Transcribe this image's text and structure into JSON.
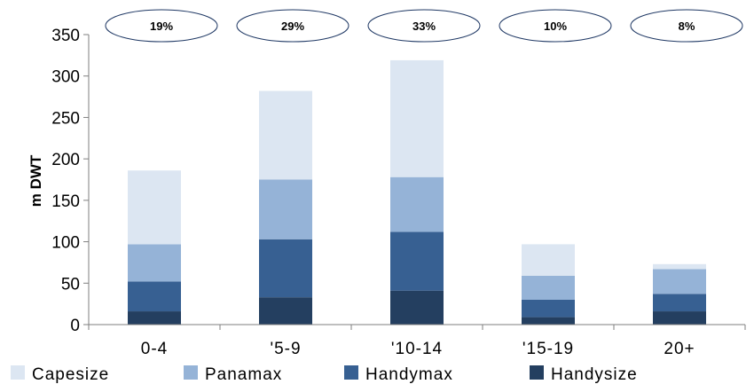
{
  "chart_data": {
    "type": "bar",
    "stacked": true,
    "categories": [
      "0-4",
      "'5-9",
      "'10-14",
      "'15-19",
      "20+"
    ],
    "series": [
      {
        "name": "Handysize",
        "values": [
          16,
          33,
          41,
          9,
          16
        ],
        "color": "#243F60"
      },
      {
        "name": "Handymax",
        "values": [
          36,
          70,
          71,
          21,
          21
        ],
        "color": "#376092"
      },
      {
        "name": "Panamax",
        "values": [
          45,
          72,
          66,
          29,
          30
        ],
        "color": "#95B3D7"
      },
      {
        "name": "Capesize",
        "values": [
          89,
          107,
          141,
          38,
          6
        ],
        "color": "#DCE6F2"
      }
    ],
    "ylabel": "m DWT",
    "ylim": [
      0,
      350
    ],
    "yticks": [
      0,
      50,
      100,
      150,
      200,
      250,
      300,
      350
    ],
    "grid": false,
    "legend_position": "bottom",
    "legend_order": [
      "Capesize",
      "Panamax",
      "Handymax",
      "Handysize"
    ],
    "annotations": [
      "19%",
      "29%",
      "33%",
      "10%",
      "8%"
    ],
    "annotation_border_color": "#1F3864"
  }
}
